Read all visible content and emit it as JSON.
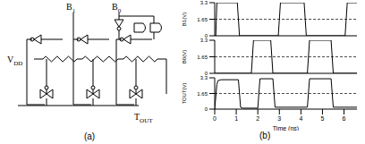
{
  "circuit": {
    "label": "(a)",
    "inputs": [
      {
        "main": "B",
        "sub": "1"
      },
      {
        "main": "B",
        "sub": "0"
      }
    ],
    "supply": {
      "main": "V",
      "sub": "DD"
    },
    "output": {
      "main": "T",
      "sub": "OUT"
    }
  },
  "waveforms_label": "(b)",
  "chart_data": [
    {
      "type": "line",
      "y_label": "B1(V)",
      "x": [
        0,
        0.05,
        0.1,
        1.05,
        1.15,
        2.95,
        3.05,
        4.15,
        4.25,
        6.05,
        6.15,
        6.6
      ],
      "values": [
        0,
        0,
        3.3,
        3.3,
        0,
        0,
        3.3,
        3.3,
        0,
        0,
        3.3,
        3.3
      ],
      "xlim": [
        0,
        6.6
      ],
      "ylim": [
        0,
        3.3
      ],
      "yticks": [
        0,
        1.65,
        3.3
      ],
      "threshold": 1.65,
      "tick_labels": "y",
      "color": "#000000"
    },
    {
      "type": "line",
      "y_label": "B0(V)",
      "x": [
        0,
        1.7,
        1.8,
        2.6,
        2.7,
        4.3,
        4.4,
        5.4,
        5.5,
        6.6
      ],
      "values": [
        0,
        0,
        3.3,
        3.3,
        0,
        0,
        3.3,
        3.3,
        0,
        0
      ],
      "xlim": [
        0,
        6.6
      ],
      "ylim": [
        0,
        3.3
      ],
      "yticks": [
        0,
        1.65,
        3.3
      ],
      "threshold": 1.65,
      "tick_labels": "y",
      "color": "#000000"
    },
    {
      "type": "line",
      "y_label": "TOUT(V)",
      "x_label": "Time (ns)",
      "x": [
        0,
        0.1,
        0.15,
        0.3,
        1.1,
        1.2,
        1.3,
        2.0,
        2.1,
        2.7,
        2.8,
        4.3,
        4.4,
        5.4,
        5.5,
        6.6
      ],
      "values": [
        0,
        2.6,
        3.0,
        3.1,
        3.1,
        0.2,
        0.1,
        0.1,
        3.2,
        3.2,
        0.2,
        0.2,
        3.2,
        3.2,
        0.2,
        0.2
      ],
      "xlim": [
        0,
        6.6
      ],
      "xticks": [
        0,
        1,
        2,
        3,
        4,
        5,
        6
      ],
      "ylim": [
        0,
        3.3
      ],
      "yticks": [
        0,
        1.65,
        3.3
      ],
      "threshold": 1.65,
      "color": "#000000"
    }
  ]
}
